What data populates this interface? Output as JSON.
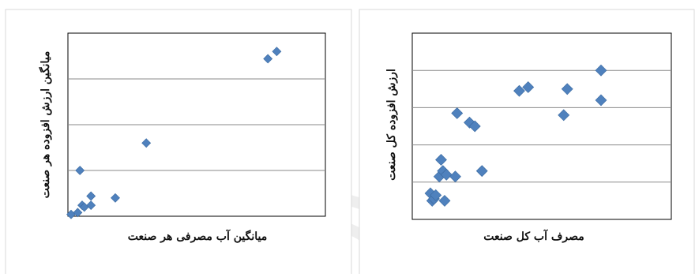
{
  "chart_data": [
    {
      "type": "scatter",
      "title": "",
      "xlabel": "میانگین آب مصرفی هر صنعت",
      "ylabel": "میانگین ارزش افزوده هر صنعت",
      "xlim": [
        0,
        100
      ],
      "ylim": [
        0,
        100
      ],
      "grid": true,
      "gridlines_y": [
        25,
        50,
        75
      ],
      "marker": "diamond",
      "color": "#4f81bd",
      "points": [
        {
          "x": 0,
          "y": 1
        },
        {
          "x": 3,
          "y": 2
        },
        {
          "x": 4,
          "y": 25
        },
        {
          "x": 5,
          "y": 6
        },
        {
          "x": 6,
          "y": 5
        },
        {
          "x": 9,
          "y": 6
        },
        {
          "x": 9,
          "y": 11
        },
        {
          "x": 20,
          "y": 10
        },
        {
          "x": 34,
          "y": 40
        },
        {
          "x": 89,
          "y": 86
        },
        {
          "x": 93,
          "y": 90
        }
      ]
    },
    {
      "type": "scatter",
      "title": "",
      "xlabel": "مصرف آب کل صنعت",
      "ylabel": "ارزش افزوده کل صنعت",
      "xlim": [
        0,
        100
      ],
      "ylim": [
        0,
        100
      ],
      "grid": true,
      "gridlines_y": [
        20,
        40,
        60,
        80
      ],
      "marker": "diamond",
      "color": "#4f81bd",
      "points": [
        {
          "x": 0,
          "y": 14
        },
        {
          "x": 1,
          "y": 10
        },
        {
          "x": 2,
          "y": 11
        },
        {
          "x": 3,
          "y": 13
        },
        {
          "x": 5,
          "y": 23
        },
        {
          "x": 6,
          "y": 32
        },
        {
          "x": 7,
          "y": 26
        },
        {
          "x": 8,
          "y": 10
        },
        {
          "x": 9,
          "y": 24
        },
        {
          "x": 14,
          "y": 23
        },
        {
          "x": 15,
          "y": 57
        },
        {
          "x": 22,
          "y": 52
        },
        {
          "x": 25,
          "y": 50
        },
        {
          "x": 29,
          "y": 26
        },
        {
          "x": 50,
          "y": 69
        },
        {
          "x": 55,
          "y": 71
        },
        {
          "x": 75,
          "y": 56
        },
        {
          "x": 77,
          "y": 70
        },
        {
          "x": 96,
          "y": 64
        },
        {
          "x": 96,
          "y": 80
        }
      ]
    }
  ]
}
